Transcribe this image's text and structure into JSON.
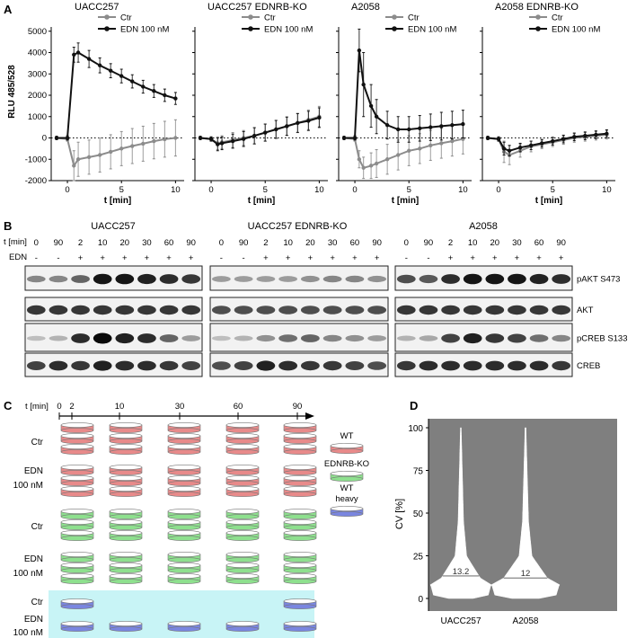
{
  "panel_labels": {
    "a": "A",
    "b": "B",
    "c": "C",
    "d": "D"
  },
  "panel_a": {
    "ylabel": "RLU 485/528",
    "xlabel": "t [min]",
    "y_ticks": [
      "5000",
      "4000",
      "3000",
      "2000",
      "1000",
      "0",
      "-1000",
      "-2000"
    ],
    "x_ticks": [
      "0",
      "5",
      "10"
    ],
    "legend": [
      "Ctr",
      "EDN 100 nM"
    ],
    "colors": {
      "ctr": "#8c8c8c",
      "edn": "#111111"
    },
    "subplots": [
      "UACC257",
      "UACC257 EDNRB-KO",
      "A2058",
      "A2058 EDNRB-KO"
    ]
  },
  "chart_data": [
    {
      "type": "line",
      "title": "UACC257",
      "xlabel": "t [min]",
      "ylabel": "RLU 485/528",
      "xlim": [
        -1.5,
        10.8
      ],
      "ylim": [
        -2000,
        5200
      ],
      "x": [
        -1,
        0,
        0.6,
        1,
        2,
        3,
        4,
        5,
        6,
        7,
        8,
        9,
        10
      ],
      "series": [
        {
          "name": "Ctr",
          "values": [
            0,
            -50,
            -1300,
            -1000,
            -900,
            -800,
            -650,
            -500,
            -380,
            -270,
            -150,
            -60,
            0
          ],
          "error": [
            80,
            100,
            700,
            800,
            800,
            800,
            800,
            800,
            820,
            820,
            830,
            840,
            850
          ]
        },
        {
          "name": "EDN 100 nM",
          "values": [
            0,
            0,
            3900,
            4000,
            3700,
            3400,
            3150,
            2900,
            2650,
            2400,
            2200,
            2000,
            1850
          ],
          "error": [
            80,
            100,
            350,
            450,
            400,
            350,
            330,
            320,
            310,
            300,
            300,
            290,
            280
          ]
        }
      ]
    },
    {
      "type": "line",
      "title": "UACC257 EDNRB-KO",
      "xlabel": "t [min]",
      "ylabel": "",
      "xlim": [
        -1.5,
        10.8
      ],
      "ylim": [
        -2000,
        5200
      ],
      "x": [
        -1,
        0,
        0.6,
        1,
        2,
        3,
        4,
        5,
        6,
        7,
        8,
        9,
        10
      ],
      "series": [
        {
          "name": "Ctr",
          "values": [
            0,
            -50,
            -250,
            -200,
            -100,
            0,
            100,
            250,
            400,
            550,
            700,
            850,
            1000
          ],
          "error": [
            80,
            100,
            300,
            300,
            350,
            350,
            380,
            400,
            420,
            430,
            450,
            460,
            480
          ]
        },
        {
          "name": "EDN 100 nM",
          "values": [
            0,
            -50,
            -300,
            -250,
            -150,
            -50,
            100,
            250,
            400,
            550,
            700,
            800,
            950
          ],
          "error": [
            80,
            100,
            300,
            300,
            330,
            350,
            380,
            400,
            420,
            430,
            440,
            450,
            460
          ]
        }
      ]
    },
    {
      "type": "line",
      "title": "A2058",
      "xlabel": "t [min]",
      "ylabel": "",
      "xlim": [
        -1.5,
        10.8
      ],
      "ylim": [
        -2000,
        5200
      ],
      "x": [
        -1,
        0,
        0.4,
        0.8,
        1.5,
        2,
        3,
        4,
        5,
        6,
        7,
        8,
        9,
        10
      ],
      "series": [
        {
          "name": "Ctr",
          "values": [
            0,
            -50,
            -1000,
            -1400,
            -1300,
            -1200,
            -1000,
            -800,
            -600,
            -500,
            -350,
            -250,
            -150,
            -50
          ],
          "error": [
            80,
            100,
            400,
            500,
            600,
            650,
            700,
            700,
            700,
            700,
            700,
            700,
            700,
            700
          ]
        },
        {
          "name": "EDN 100 nM",
          "values": [
            0,
            0,
            4100,
            2500,
            1500,
            1000,
            600,
            400,
            400,
            450,
            500,
            550,
            600,
            650
          ],
          "error": [
            80,
            100,
            1000,
            1500,
            1000,
            800,
            650,
            600,
            600,
            600,
            620,
            650,
            650,
            650
          ]
        }
      ]
    },
    {
      "type": "line",
      "title": "A2058 EDNRB-KO",
      "xlabel": "t [min]",
      "ylabel": "",
      "xlim": [
        -1.5,
        10.8
      ],
      "ylim": [
        -2000,
        5200
      ],
      "x": [
        -1,
        0,
        0.5,
        1,
        2,
        3,
        4,
        5,
        6,
        7,
        8,
        9,
        10
      ],
      "series": [
        {
          "name": "Ctr",
          "values": [
            0,
            -50,
            -650,
            -800,
            -600,
            -400,
            -300,
            -200,
            -100,
            0,
            50,
            100,
            150
          ],
          "error": [
            80,
            100,
            500,
            450,
            300,
            250,
            200,
            200,
            200,
            200,
            200,
            200,
            200
          ]
        },
        {
          "name": "EDN 100 nM",
          "values": [
            0,
            -50,
            -500,
            -600,
            -450,
            -350,
            -250,
            -150,
            -50,
            50,
            100,
            150,
            200
          ],
          "error": [
            80,
            100,
            300,
            250,
            200,
            200,
            180,
            180,
            180,
            180,
            180,
            180,
            180
          ]
        }
      ]
    },
    {
      "type": "violin",
      "title": "",
      "xlabel": "",
      "ylabel": "CV [%]",
      "ylim": [
        0,
        100
      ],
      "y_ticks": [
        "0",
        "25",
        "50",
        "75",
        "100"
      ],
      "categories": [
        "UACC257",
        "A2058"
      ],
      "medians": [
        13.2,
        12
      ],
      "median_labels": [
        "13.2",
        "12"
      ]
    }
  ],
  "panel_b": {
    "groups": [
      "UACC257",
      "UACC257 EDNRB-KO",
      "A2058"
    ],
    "t_label": "t [min]",
    "edn_label": "EDN",
    "times": [
      "0",
      "90",
      "2",
      "10",
      "20",
      "30",
      "60",
      "90"
    ],
    "edn": [
      "-",
      "-",
      "+",
      "+",
      "+",
      "+",
      "+",
      "+"
    ],
    "proteins": [
      "pAKT S473",
      "AKT",
      "pCREB S133",
      "CREB"
    ]
  },
  "panel_c": {
    "t_label": "t [min]",
    "time_points": [
      "0",
      "2",
      "10",
      "30",
      "60",
      "90"
    ],
    "row_labels": [
      "Ctr",
      "EDN\n100 nM",
      "Ctr",
      "EDN\n100 nM",
      "Ctr",
      "EDN\n100 nM"
    ],
    "legend": [
      "WT",
      "EDNRB-KO",
      "WT\nheavy"
    ],
    "colors": {
      "wt": "#e88a8a",
      "ko": "#8ee08e",
      "heavy": "#7a86e0",
      "highlight": "#c8f4f6"
    }
  },
  "panel_d": {
    "ylabel": "CV [%]",
    "background": "#7f7f7f"
  }
}
